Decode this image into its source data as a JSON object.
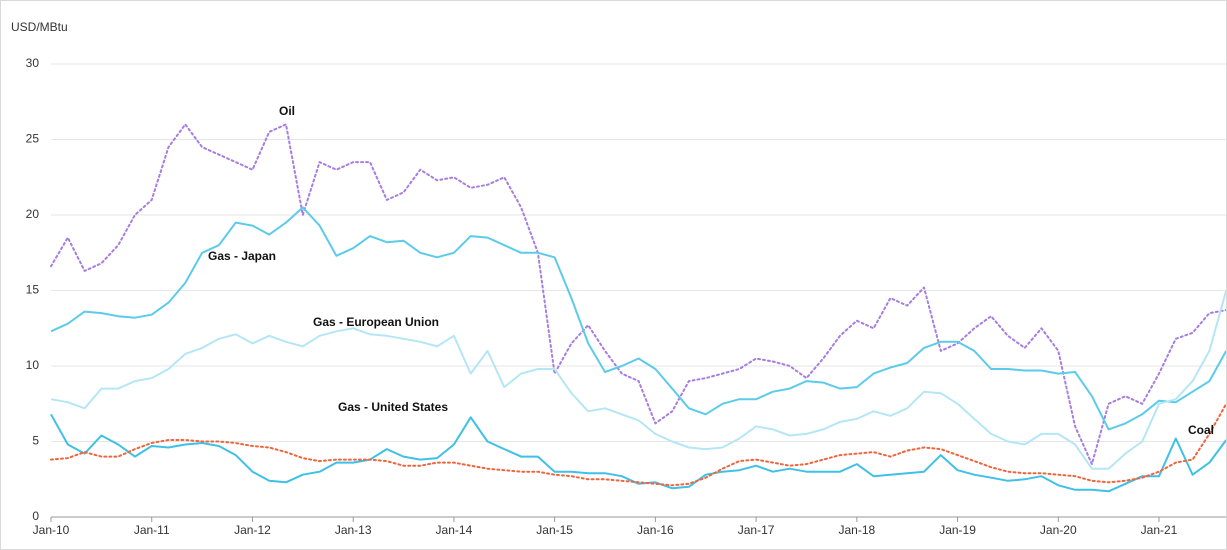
{
  "chart_data": {
    "type": "line",
    "y_label": "USD/MBtu",
    "categories": [
      "Jan-10",
      null,
      null,
      null,
      null,
      null,
      "Jan-11",
      null,
      null,
      null,
      null,
      null,
      "Jan-12",
      null,
      null,
      null,
      null,
      null,
      "Jan-13",
      null,
      null,
      null,
      null,
      null,
      "Jan-14",
      null,
      null,
      null,
      null,
      null,
      "Jan-15",
      null,
      null,
      null,
      null,
      null,
      "Jan-16",
      null,
      null,
      null,
      null,
      null,
      "Jan-17",
      null,
      null,
      null,
      null,
      null,
      "Jan-18",
      null,
      null,
      null,
      null,
      null,
      "Jan-19",
      null,
      null,
      null,
      null,
      null,
      "Jan-20",
      null,
      null,
      null,
      null,
      null,
      "Jan-21",
      null,
      null,
      null,
      null
    ],
    "ylim": [
      0,
      30
    ],
    "yticks": [
      0,
      5,
      10,
      15,
      20,
      25,
      30
    ],
    "grid": true,
    "series": [
      {
        "name": "Oil",
        "color": "#a77de0",
        "style": "dotted",
        "values": [
          16.6,
          18.5,
          16.3,
          16.8,
          18,
          20,
          21,
          24.5,
          26,
          24.5,
          24,
          23.5,
          23,
          25.5,
          26,
          20,
          23.5,
          23,
          23.5,
          23.5,
          21,
          21.5,
          23,
          22.3,
          22.5,
          21.8,
          22,
          22.5,
          20.5,
          17.5,
          9.5,
          11.5,
          12.7,
          11,
          9.5,
          9,
          6.2,
          7,
          9,
          9.2,
          9.5,
          9.8,
          10.5,
          10.3,
          10,
          9.2,
          10.5,
          12,
          13,
          12.5,
          14.5,
          14,
          15.2,
          11,
          11.5,
          12.5,
          13.3,
          12,
          11.2,
          12.5,
          11,
          6,
          3.5,
          7.5,
          8,
          7.5,
          9.5,
          11.8,
          12.2,
          13.5,
          13.7
        ]
      },
      {
        "name": "Gas - Japan",
        "color": "#5ccbea",
        "style": "solid",
        "values": [
          12.3,
          12.8,
          13.6,
          13.5,
          13.3,
          13.2,
          13.4,
          14.2,
          15.5,
          17.5,
          18,
          19.5,
          19.3,
          18.7,
          19.5,
          20.5,
          19.3,
          17.3,
          17.8,
          18.6,
          18.2,
          18.3,
          17.5,
          17.2,
          17.5,
          18.6,
          18.5,
          18,
          17.5,
          17.5,
          17.2,
          14.5,
          11.5,
          9.6,
          10,
          10.5,
          9.8,
          8.5,
          7.2,
          6.8,
          7.5,
          7.8,
          7.8,
          8.3,
          8.5,
          9,
          8.9,
          8.5,
          8.6,
          9.5,
          9.9,
          10.2,
          11.2,
          11.6,
          11.6,
          11,
          9.8,
          9.8,
          9.7,
          9.7,
          9.5,
          9.6,
          8,
          5.8,
          6.2,
          6.8,
          7.7,
          7.6,
          8.3,
          9,
          11
        ]
      },
      {
        "name": "Gas - European Union",
        "color": "#b5e6f6",
        "style": "solid",
        "values": [
          7.8,
          7.6,
          7.2,
          8.5,
          8.5,
          9,
          9.2,
          9.8,
          10.8,
          11.2,
          11.8,
          12.1,
          11.5,
          12,
          11.6,
          11.3,
          12,
          12.3,
          12.5,
          12.1,
          12,
          11.8,
          11.6,
          11.3,
          12,
          9.5,
          11,
          8.6,
          9.5,
          9.8,
          9.8,
          8.2,
          7,
          7.2,
          6.8,
          6.4,
          5.5,
          5,
          4.6,
          4.5,
          4.6,
          5.2,
          6,
          5.8,
          5.4,
          5.5,
          5.8,
          6.3,
          6.5,
          7,
          6.7,
          7.2,
          8.3,
          8.2,
          7.5,
          6.5,
          5.5,
          5,
          4.8,
          5.5,
          5.5,
          4.8,
          3.2,
          3.2,
          4.2,
          5,
          7.5,
          7.8,
          9,
          11,
          15
        ]
      },
      {
        "name": "Gas - United States",
        "color": "#3fc0e6",
        "style": "solid",
        "values": [
          6.8,
          4.8,
          4.2,
          5.4,
          4.8,
          4,
          4.7,
          4.6,
          4.8,
          4.9,
          4.7,
          4.1,
          3,
          2.4,
          2.3,
          2.8,
          3,
          3.6,
          3.6,
          3.8,
          4.5,
          4,
          3.8,
          3.9,
          4.8,
          6.6,
          5,
          4.5,
          4,
          4,
          3,
          3,
          2.9,
          2.9,
          2.7,
          2.2,
          2.3,
          1.9,
          2,
          2.8,
          3,
          3.1,
          3.4,
          3,
          3.2,
          3,
          3,
          3,
          3.5,
          2.7,
          2.8,
          2.9,
          3,
          4.1,
          3.1,
          2.8,
          2.6,
          2.4,
          2.5,
          2.7,
          2.1,
          1.8,
          1.8,
          1.7,
          2.2,
          2.7,
          2.7,
          5.2,
          2.8,
          3.6,
          5.1
        ]
      },
      {
        "name": "Coal",
        "color": "#f0643c",
        "style": "dotted",
        "values": [
          3.8,
          3.9,
          4.3,
          4,
          4,
          4.5,
          4.9,
          5.1,
          5.1,
          5,
          5,
          4.9,
          4.7,
          4.6,
          4.3,
          3.9,
          3.7,
          3.8,
          3.8,
          3.8,
          3.7,
          3.4,
          3.4,
          3.6,
          3.6,
          3.4,
          3.2,
          3.1,
          3,
          3,
          2.8,
          2.7,
          2.5,
          2.5,
          2.4,
          2.3,
          2.2,
          2.1,
          2.2,
          2.6,
          3.2,
          3.7,
          3.8,
          3.6,
          3.4,
          3.5,
          3.8,
          4.1,
          4.2,
          4.3,
          4,
          4.4,
          4.6,
          4.5,
          4.1,
          3.7,
          3.3,
          3,
          2.9,
          2.9,
          2.8,
          2.7,
          2.4,
          2.3,
          2.4,
          2.6,
          3,
          3.6,
          3.8,
          5.5,
          7.5
        ]
      }
    ]
  }
}
